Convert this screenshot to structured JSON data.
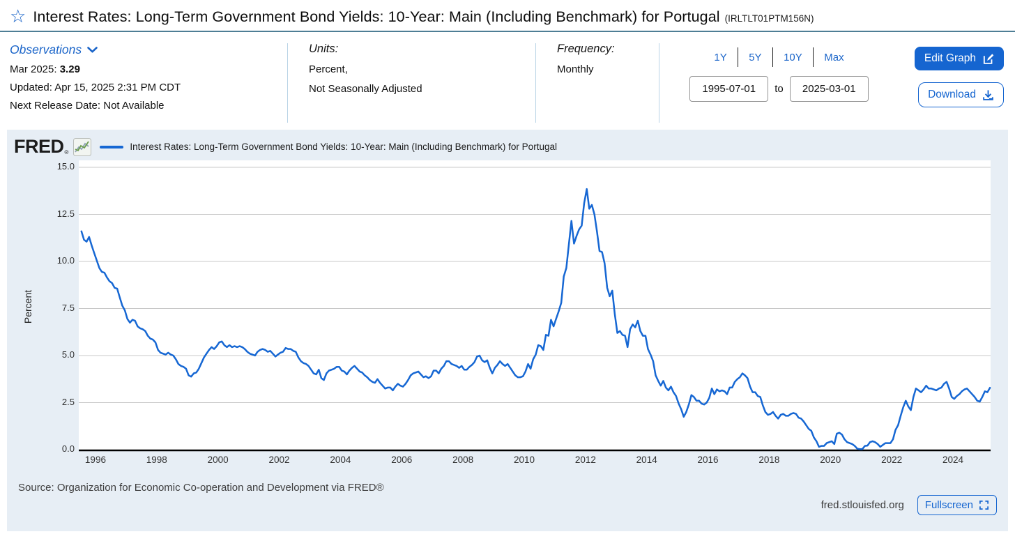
{
  "header": {
    "title": "Interest Rates: Long-Term Government Bond Yields: 10-Year: Main (Including Benchmark) for Portugal",
    "series_id": "(IRLTLT01PTM156N)"
  },
  "observations": {
    "label": "Observations",
    "latest_label": "Mar 2025:",
    "latest_value": "3.29",
    "updated": "Updated: Apr 15, 2025 2:31 PM CDT",
    "next_release": "Next Release Date: Not Available"
  },
  "units": {
    "label": "Units:",
    "line1": "Percent,",
    "line2": "Not Seasonally Adjusted"
  },
  "frequency": {
    "label": "Frequency:",
    "value": "Monthly"
  },
  "range": {
    "presets": [
      "1Y",
      "5Y",
      "10Y",
      "Max"
    ],
    "start": "1995-07-01",
    "to_label": "to",
    "end": "2025-03-01"
  },
  "actions": {
    "edit_graph": "Edit Graph",
    "download": "Download"
  },
  "chart": {
    "brand": "FRED",
    "reg_mark": "®",
    "legend": "Interest Rates: Long-Term Government Bond Yields: 10-Year: Main (Including Benchmark) for Portugal",
    "source": "Source: Organization for Economic Co-operation and Development via FRED®",
    "site": "fred.stlouisfed.org",
    "fullscreen_label": "Fullscreen"
  },
  "colors": {
    "accent_blue": "#1b65c9",
    "button_blue": "#1565d0",
    "line_blue": "#1667d3",
    "card_bg": "#e7eef5",
    "gridline": "#c8c8c8"
  },
  "chart_data": {
    "type": "line",
    "title": "Interest Rates: Long-Term Government Bond Yields: 10-Year: Main (Including Benchmark) for Portugal",
    "ylabel": "Percent",
    "ylim": [
      0,
      15
    ],
    "yticks": [
      "0.0",
      "2.5",
      "5.0",
      "7.5",
      "10.0",
      "12.5",
      "15.0"
    ],
    "xticks": [
      1996,
      1998,
      2000,
      2002,
      2004,
      2006,
      2008,
      2010,
      2012,
      2014,
      2016,
      2018,
      2020,
      2022,
      2024
    ],
    "x_start": "1995-07",
    "x_end": "2025-03",
    "frequency": "monthly",
    "legend_position": "top",
    "grid": true,
    "line_color": "#1667d3",
    "values": [
      11.6,
      11.15,
      11.05,
      11.3,
      10.85,
      10.45,
      10.05,
      9.65,
      9.45,
      9.4,
      9.15,
      8.95,
      8.85,
      8.6,
      8.55,
      8.1,
      7.65,
      7.4,
      6.95,
      6.75,
      6.9,
      6.85,
      6.55,
      6.45,
      6.4,
      6.3,
      6.05,
      5.9,
      5.85,
      5.7,
      5.3,
      5.15,
      5.1,
      5.05,
      5.15,
      5.05,
      5.0,
      4.8,
      4.55,
      4.45,
      4.4,
      4.3,
      3.95,
      3.88,
      4.05,
      4.1,
      4.3,
      4.6,
      4.9,
      5.1,
      5.3,
      5.45,
      5.35,
      5.5,
      5.7,
      5.75,
      5.55,
      5.45,
      5.55,
      5.45,
      5.5,
      5.45,
      5.5,
      5.45,
      5.35,
      5.2,
      5.1,
      5.05,
      5.0,
      5.2,
      5.3,
      5.35,
      5.3,
      5.2,
      5.25,
      5.1,
      4.95,
      5.05,
      5.15,
      5.2,
      5.4,
      5.35,
      5.35,
      5.25,
      5.2,
      4.9,
      4.7,
      4.6,
      4.55,
      4.45,
      4.25,
      4.05,
      4.0,
      4.25,
      3.8,
      3.7,
      4.05,
      4.2,
      4.25,
      4.3,
      4.4,
      4.4,
      4.2,
      4.15,
      4.0,
      4.2,
      4.35,
      4.45,
      4.3,
      4.15,
      4.1,
      3.95,
      3.85,
      3.7,
      3.6,
      3.55,
      3.75,
      3.55,
      3.4,
      3.25,
      3.3,
      3.3,
      3.15,
      3.35,
      3.5,
      3.4,
      3.35,
      3.5,
      3.7,
      3.95,
      4.05,
      4.1,
      4.15,
      4.0,
      3.85,
      3.9,
      3.8,
      3.9,
      4.2,
      4.2,
      4.05,
      4.3,
      4.45,
      4.7,
      4.7,
      4.55,
      4.5,
      4.45,
      4.35,
      4.45,
      4.25,
      4.25,
      4.4,
      4.5,
      4.65,
      4.95,
      5.0,
      4.75,
      4.65,
      4.75,
      4.35,
      4.05,
      4.35,
      4.5,
      4.7,
      4.55,
      4.45,
      4.55,
      4.35,
      4.15,
      3.95,
      3.85,
      3.85,
      3.9,
      4.15,
      4.55,
      4.3,
      4.8,
      5.05,
      5.55,
      5.5,
      5.3,
      6.1,
      6.05,
      6.9,
      6.55,
      6.95,
      7.35,
      7.8,
      9.2,
      9.65,
      10.9,
      12.15,
      10.95,
      11.35,
      11.7,
      11.9,
      13.1,
      13.85,
      12.8,
      13.0,
      12.5,
      11.6,
      10.55,
      10.5,
      9.9,
      8.6,
      8.15,
      8.45,
      7.2,
      6.2,
      6.3,
      6.1,
      6.05,
      5.45,
      6.4,
      6.65,
      6.5,
      6.85,
      6.3,
      6.05,
      6.05,
      5.35,
      5.05,
      4.7,
      3.95,
      3.65,
      3.4,
      3.65,
      3.3,
      3.15,
      3.35,
      3.05,
      2.85,
      2.45,
      2.15,
      1.75,
      2.0,
      2.4,
      2.9,
      2.8,
      2.6,
      2.6,
      2.45,
      2.4,
      2.5,
      2.75,
      3.25,
      2.95,
      3.2,
      3.1,
      3.15,
      3.1,
      2.95,
      3.3,
      3.3,
      3.6,
      3.75,
      3.85,
      4.05,
      3.95,
      3.8,
      3.35,
      3.05,
      3.05,
      2.85,
      2.8,
      2.35,
      2.0,
      1.85,
      1.9,
      2.0,
      1.8,
      1.65,
      1.85,
      1.9,
      1.8,
      1.8,
      1.9,
      1.95,
      1.9,
      1.7,
      1.65,
      1.5,
      1.3,
      1.1,
      1.0,
      0.65,
      0.45,
      0.15,
      0.2,
      0.2,
      0.35,
      0.4,
      0.45,
      0.3,
      0.85,
      0.9,
      0.8,
      0.55,
      0.4,
      0.35,
      0.3,
      0.2,
      0.05,
      0.03,
      0.03,
      0.2,
      0.22,
      0.4,
      0.45,
      0.4,
      0.3,
      0.15,
      0.25,
      0.35,
      0.35,
      0.35,
      0.55,
      1.05,
      1.3,
      1.8,
      2.25,
      2.6,
      2.3,
      2.1,
      2.8,
      3.25,
      3.15,
      3.05,
      3.2,
      3.4,
      3.25,
      3.25,
      3.2,
      3.15,
      3.25,
      3.3,
      3.5,
      3.6,
      3.25,
      2.8,
      2.7,
      2.85,
      2.95,
      3.1,
      3.2,
      3.25,
      3.1,
      2.95,
      2.8,
      2.6,
      2.55,
      2.8,
      3.1,
      3.05,
      3.29
    ]
  }
}
